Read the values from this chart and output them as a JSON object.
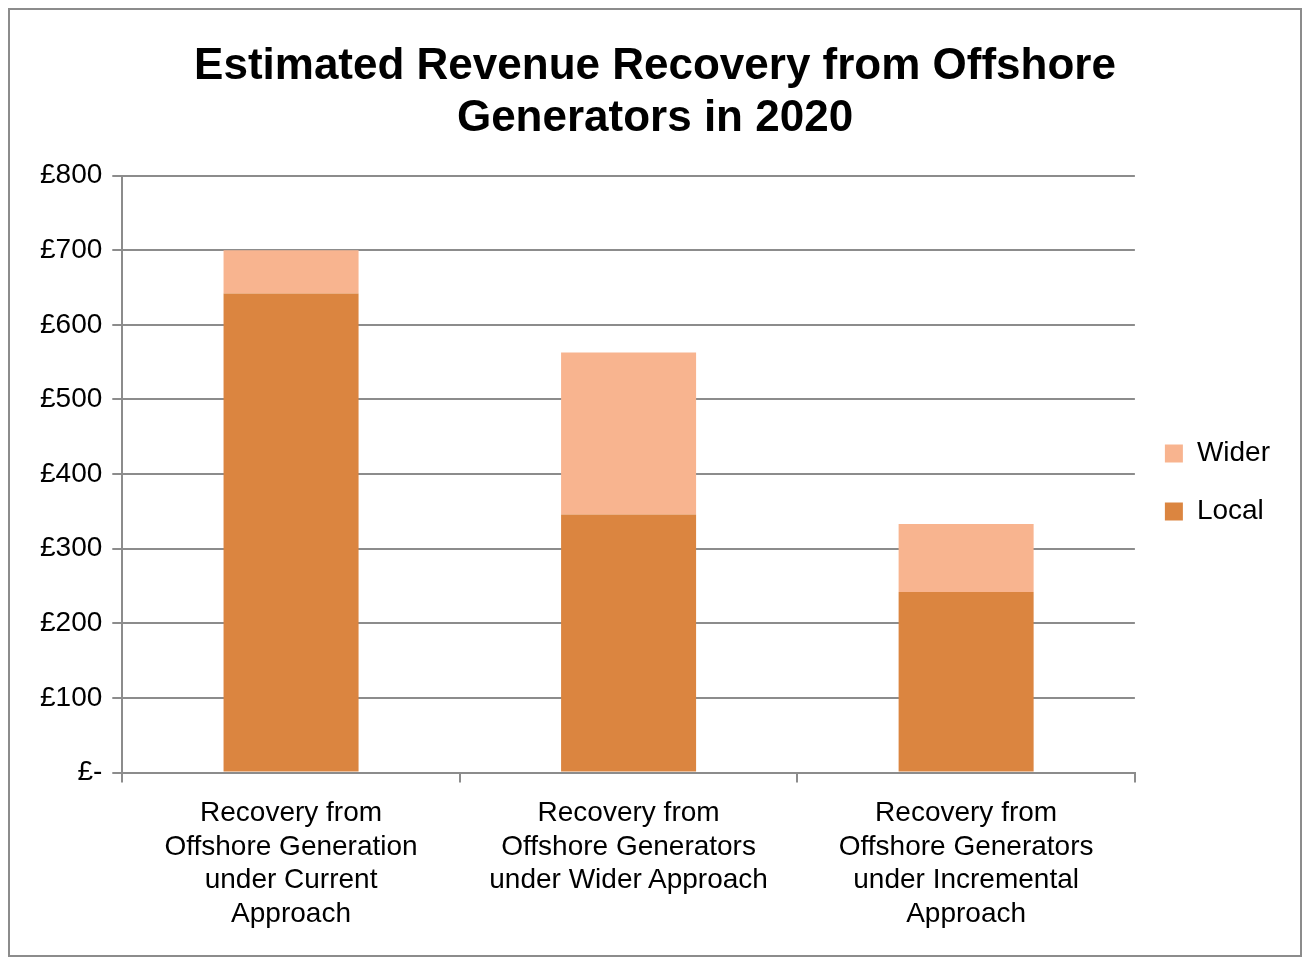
{
  "chart_data": {
    "type": "bar",
    "title": "Estimated Revenue Recovery from Offshore Generators in 2020",
    "categories": [
      "Recovery from Offshore Generation under Current Approach",
      "Recovery from Offshore Generators under Wider Approach",
      "Recovery from Offshore Generators under Incremental Approach"
    ],
    "series": [
      {
        "name": "Local",
        "color": "#db8540",
        "values": [
          642,
          346,
          242
        ]
      },
      {
        "name": "Wider",
        "color": "#f8b48f",
        "values": [
          58,
          217,
          91
        ]
      }
    ],
    "stacked": true,
    "ylim": [
      0,
      800
    ],
    "yticks": [
      {
        "value": 0,
        "label": "£-"
      },
      {
        "value": 100,
        "label": "£100"
      },
      {
        "value": 200,
        "label": "£200"
      },
      {
        "value": 300,
        "label": "£300"
      },
      {
        "value": 400,
        "label": "£400"
      },
      {
        "value": 500,
        "label": "£500"
      },
      {
        "value": 600,
        "label": "£600"
      },
      {
        "value": 700,
        "label": "£700"
      },
      {
        "value": 800,
        "label": "£800"
      }
    ],
    "grid": "y",
    "legend": "right"
  }
}
